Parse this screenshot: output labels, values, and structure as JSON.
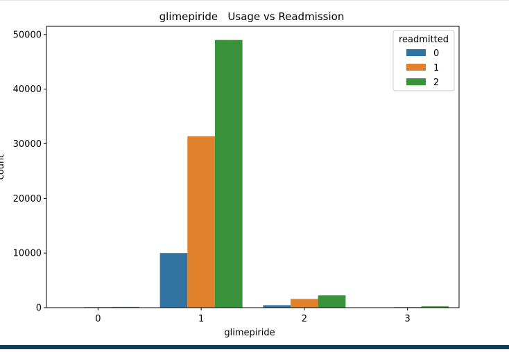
{
  "chart_data": {
    "type": "bar",
    "title": "glimepiride   Usage vs Readmission",
    "xlabel": "glimepiride",
    "ylabel": "count",
    "categories": [
      "0",
      "1",
      "2",
      "3"
    ],
    "yticks": [
      0,
      10000,
      20000,
      30000,
      40000,
      50000
    ],
    "ytick_labels": [
      "0",
      "10000",
      "20000",
      "30000",
      "40000",
      "50000"
    ],
    "ylim": [
      0,
      51500
    ],
    "legend_title": "readmitted",
    "legend_position": "top-right",
    "grid": false,
    "series": [
      {
        "name": "0",
        "color": "#3274a1",
        "values": [
          20,
          10000,
          450,
          30
        ]
      },
      {
        "name": "1",
        "color": "#e1812c",
        "values": [
          110,
          31400,
          1600,
          110
        ]
      },
      {
        "name": "2",
        "color": "#3a923a",
        "values": [
          140,
          49000,
          2250,
          240
        ]
      }
    ]
  }
}
